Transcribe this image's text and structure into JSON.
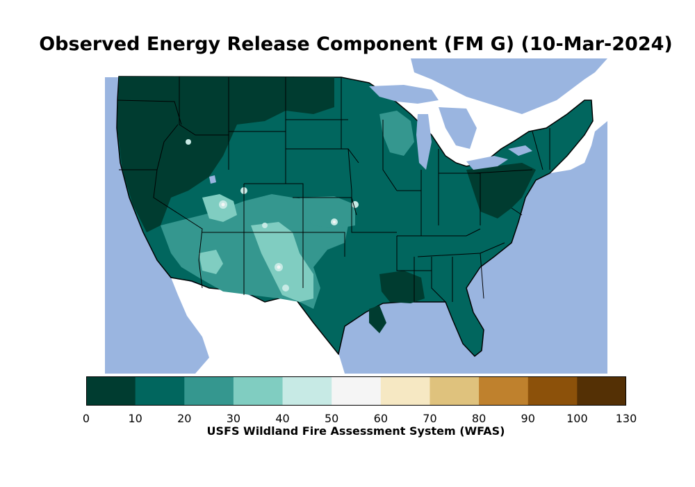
{
  "title": "Observed Energy Release Component (FM G) (10-Mar-2024)",
  "colorbar": {
    "caption": "USFS Wildland Fire Assessment System (WFAS)",
    "ticks": [
      "0",
      "10",
      "20",
      "30",
      "40",
      "50",
      "60",
      "70",
      "80",
      "90",
      "100",
      "130"
    ],
    "bins": [
      {
        "range": "0-10",
        "color": "#003c30"
      },
      {
        "range": "10-20",
        "color": "#01665e"
      },
      {
        "range": "20-30",
        "color": "#35978f"
      },
      {
        "range": "30-40",
        "color": "#80cdc1"
      },
      {
        "range": "40-50",
        "color": "#c7eae5"
      },
      {
        "range": "50-60",
        "color": "#f5f5f5"
      },
      {
        "range": "60-70",
        "color": "#f6e8c3"
      },
      {
        "range": "70-80",
        "color": "#dfc27d"
      },
      {
        "range": "80-90",
        "color": "#bf812d"
      },
      {
        "range": "90-100",
        "color": "#8c510a"
      },
      {
        "range": "100-130",
        "color": "#543005"
      }
    ]
  },
  "map": {
    "ocean_color": "#9ab5e0",
    "land_outside_color": "#ffffff",
    "border_color": "#000000"
  }
}
